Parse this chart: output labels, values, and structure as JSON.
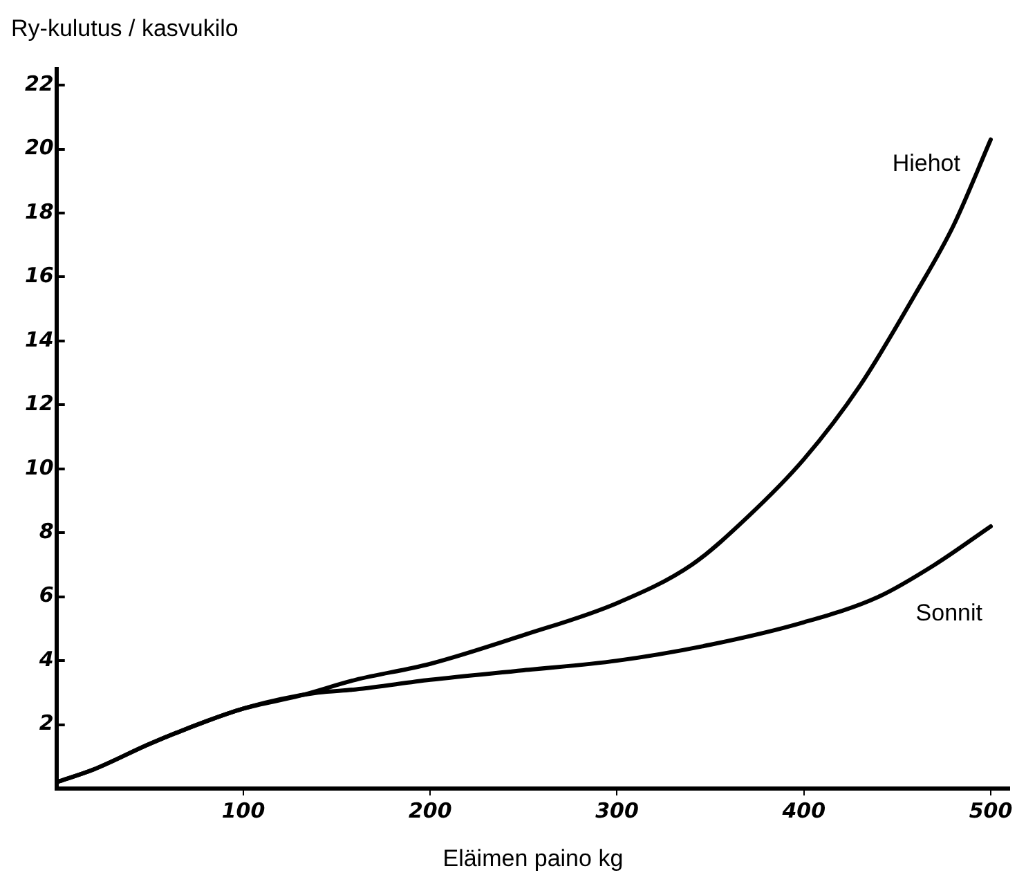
{
  "chart_data": {
    "type": "line",
    "xlabel": "Eläimen paino kg",
    "ylabel": "Ry-kulutus / kasvukilo",
    "xlim": [
      0,
      510
    ],
    "xticks": [
      100,
      200,
      300,
      400,
      500
    ],
    "ylim": [
      0,
      22.5
    ],
    "yticks": [
      2,
      4,
      6,
      8,
      10,
      12,
      14,
      16,
      18,
      20,
      22
    ],
    "grid": false,
    "legend": false,
    "marker": "none",
    "line_style": "solid",
    "series": [
      {
        "name": "Hiehot",
        "color": "#000000",
        "x": [
          0,
          20,
          50,
          80,
          100,
          130,
          160,
          200,
          250,
          300,
          340,
          370,
          400,
          430,
          460,
          480,
          500
        ],
        "values": [
          0.2,
          0.6,
          1.4,
          2.1,
          2.5,
          2.9,
          3.4,
          3.9,
          4.8,
          5.8,
          7.0,
          8.5,
          10.3,
          12.6,
          15.5,
          17.6,
          20.3
        ]
      },
      {
        "name": "Sonnit",
        "color": "#000000",
        "x": [
          0,
          20,
          50,
          80,
          100,
          120,
          140,
          160,
          200,
          250,
          300,
          350,
          400,
          440,
          470,
          500
        ],
        "values": [
          0.2,
          0.6,
          1.4,
          2.1,
          2.5,
          2.8,
          3.0,
          3.1,
          3.4,
          3.7,
          4.0,
          4.5,
          5.2,
          6.0,
          7.0,
          8.2
        ]
      }
    ]
  }
}
